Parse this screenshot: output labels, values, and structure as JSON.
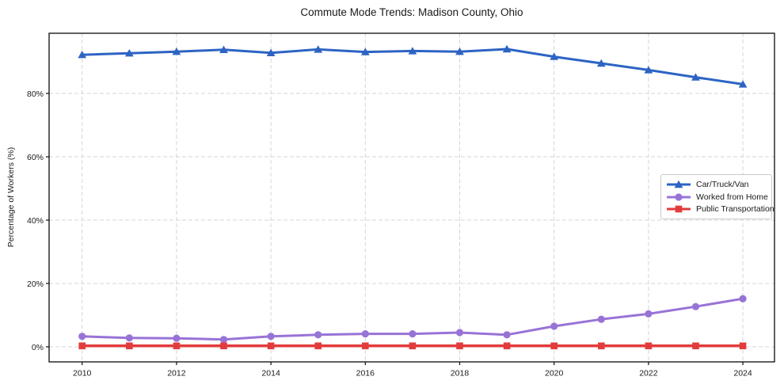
{
  "chart_data": {
    "type": "line",
    "title": "Commute Mode Trends: Madison County, Ohio",
    "xlabel": "",
    "ylabel": "Percentage of Workers (%)",
    "x": [
      2010,
      2011,
      2012,
      2013,
      2014,
      2015,
      2016,
      2017,
      2018,
      2019,
      2020,
      2021,
      2022,
      2023,
      2024
    ],
    "series": [
      {
        "name": "Car/Truck/Van",
        "marker": "triangle",
        "color": "#2d64c4",
        "line_width": 3,
        "values": [
          92.2,
          92.7,
          93.2,
          93.8,
          92.8,
          93.9,
          93.1,
          93.4,
          93.2,
          94.0,
          91.6,
          89.5,
          87.4,
          85.1,
          82.9
        ]
      },
      {
        "name": "Worked from Home",
        "marker": "circle",
        "color": "#9873d6",
        "line_width": 3,
        "values": [
          3.3,
          2.8,
          2.7,
          2.3,
          3.3,
          3.8,
          4.1,
          4.1,
          4.5,
          3.8,
          6.5,
          8.7,
          10.4,
          12.7,
          15.2
        ]
      },
      {
        "name": "Public Transportation",
        "marker": "square",
        "color": "#e23b3b",
        "line_width": 3.5,
        "values": [
          0.3,
          0.3,
          0.3,
          0.3,
          0.3,
          0.3,
          0.3,
          0.3,
          0.3,
          0.3,
          0.3,
          0.3,
          0.3,
          0.3,
          0.3
        ]
      }
    ],
    "xticks": [
      2010,
      2012,
      2014,
      2016,
      2018,
      2020,
      2022,
      2024
    ],
    "yticks": [
      0,
      20,
      40,
      60,
      80
    ],
    "ytick_suffix": "%",
    "xlim": [
      2009.3,
      2024.67
    ],
    "ylim": [
      -4.75,
      99.0
    ],
    "grid": true,
    "legend_position": "right-middle"
  }
}
